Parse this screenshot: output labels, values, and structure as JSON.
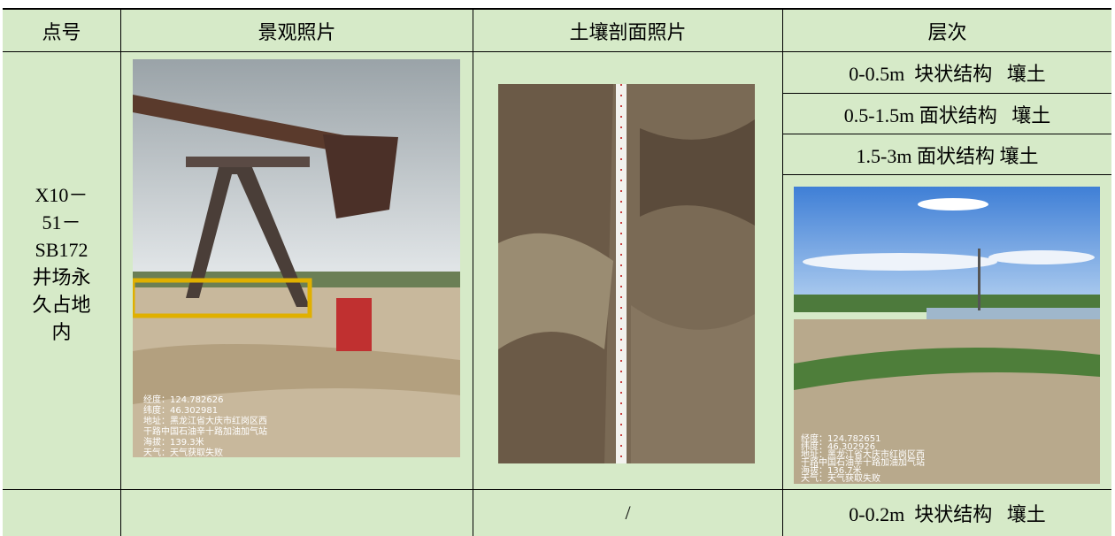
{
  "table": {
    "header": [
      "点号",
      "景观照片",
      "土壤剖面照片",
      "层次"
    ],
    "rows": [
      {
        "point_lines": [
          "X10－",
          "51－",
          "SB172",
          "井场永",
          "久占地",
          "内"
        ],
        "layers": [
          "0-0.5m  块状结构   壤土",
          "0.5-1.5m 面状结构   壤土",
          "1.5-3m 面状结构 壤土"
        ],
        "landscape_photo_text": [
          "经度：124.782626",
          "纬度：46.302981",
          "地址：黑龙江省大庆市红岗区西",
          "干路中国石油辛十路加油加气站",
          "海拔：139.3米",
          "天气：天气获取失败"
        ],
        "layer_photo_text": [
          "经度：124.782651",
          "纬度：46.302926",
          "地址：黑龙江省大庆市红岗区西",
          "干路中国石油辛十路加油加气站",
          "海拔：136.7米",
          "天气：天气获取失败"
        ]
      },
      {
        "profile": "/",
        "layers": [
          "0-0.2m  块状结构   壤土"
        ]
      }
    ]
  }
}
